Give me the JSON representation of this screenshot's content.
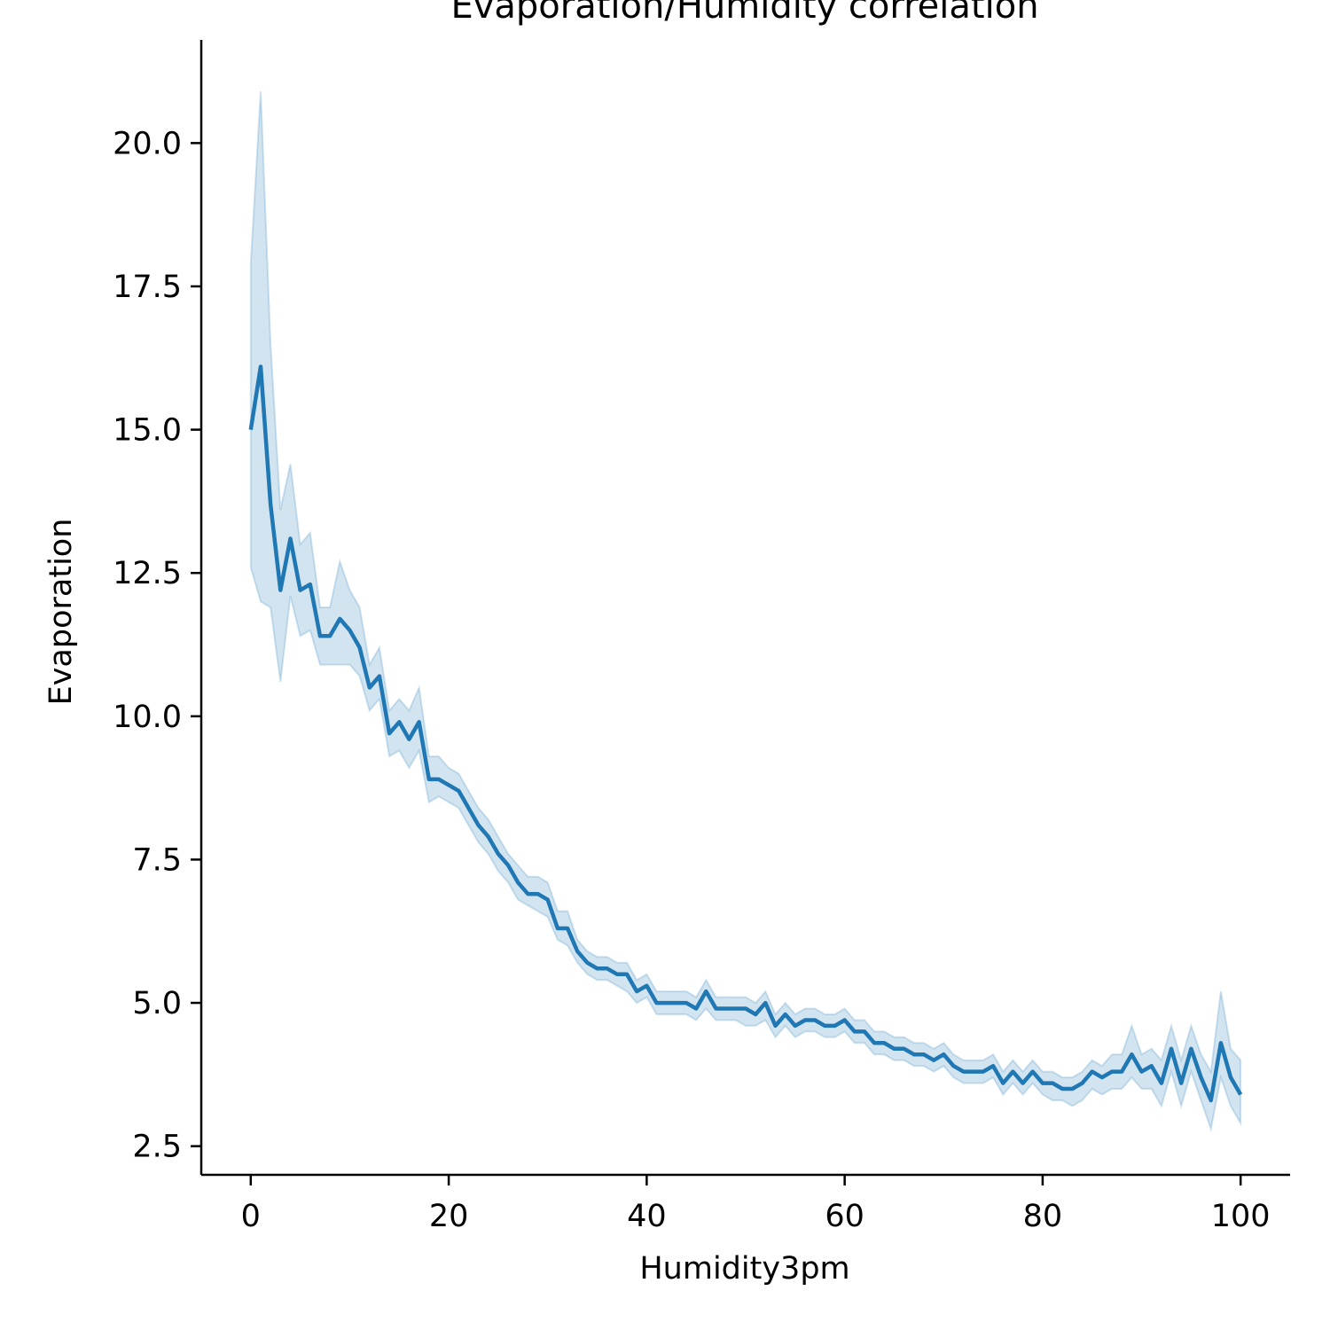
{
  "chart_data": {
    "type": "line",
    "title": "Evaporation/Humidity correlation",
    "xlabel": "Humidity3pm",
    "ylabel": "Evaporation",
    "xlim": [
      -5,
      105
    ],
    "ylim": [
      2.0,
      21.8
    ],
    "xticks": [
      0,
      20,
      40,
      60,
      80,
      100
    ],
    "xtick_labels": [
      "0",
      "20",
      "40",
      "60",
      "80",
      "100"
    ],
    "yticks": [
      2.5,
      5.0,
      7.5,
      10.0,
      12.5,
      15.0,
      17.5,
      20.0
    ],
    "ytick_labels": [
      "2.5",
      "5.0",
      "7.5",
      "10.0",
      "12.5",
      "15.0",
      "17.5",
      "20.0"
    ],
    "grid": false,
    "line_color": "#1f77b4",
    "band_color": "#1f77b4",
    "series": [
      {
        "x": [
          0,
          1,
          2,
          3,
          4,
          5,
          6,
          7,
          8,
          9,
          10,
          11,
          12,
          13,
          14,
          15,
          16,
          17,
          18,
          19,
          20,
          21,
          22,
          23,
          24,
          25,
          26,
          27,
          28,
          29,
          30,
          31,
          32,
          33,
          34,
          35,
          36,
          37,
          38,
          39,
          40,
          41,
          42,
          43,
          44,
          45,
          46,
          47,
          48,
          49,
          50,
          51,
          52,
          53,
          54,
          55,
          56,
          57,
          58,
          59,
          60,
          61,
          62,
          63,
          64,
          65,
          66,
          67,
          68,
          69,
          70,
          71,
          72,
          73,
          74,
          75,
          76,
          77,
          78,
          79,
          80,
          81,
          82,
          83,
          84,
          85,
          86,
          87,
          88,
          89,
          90,
          91,
          92,
          93,
          94,
          95,
          96,
          97,
          98,
          99,
          100
        ],
        "y": [
          15.0,
          16.1,
          13.7,
          12.2,
          13.1,
          12.2,
          12.3,
          11.4,
          11.4,
          11.7,
          11.5,
          11.2,
          10.5,
          10.7,
          9.7,
          9.9,
          9.6,
          9.9,
          8.9,
          8.9,
          8.8,
          8.7,
          8.4,
          8.1,
          7.9,
          7.6,
          7.4,
          7.1,
          6.9,
          6.9,
          6.8,
          6.3,
          6.3,
          5.9,
          5.7,
          5.6,
          5.6,
          5.5,
          5.5,
          5.2,
          5.3,
          5.0,
          5.0,
          5.0,
          5.0,
          4.9,
          5.2,
          4.9,
          4.9,
          4.9,
          4.9,
          4.8,
          5.0,
          4.6,
          4.8,
          4.6,
          4.7,
          4.7,
          4.6,
          4.6,
          4.7,
          4.5,
          4.5,
          4.3,
          4.3,
          4.2,
          4.2,
          4.1,
          4.1,
          4.0,
          4.1,
          3.9,
          3.8,
          3.8,
          3.8,
          3.9,
          3.6,
          3.8,
          3.6,
          3.8,
          3.6,
          3.6,
          3.5,
          3.5,
          3.6,
          3.8,
          3.7,
          3.8,
          3.8,
          4.1,
          3.8,
          3.9,
          3.6,
          4.2,
          3.6,
          4.2,
          3.7,
          3.3,
          4.3,
          3.7,
          3.4
        ],
        "y_low": [
          12.6,
          12.0,
          11.9,
          10.6,
          12.1,
          11.4,
          11.5,
          10.9,
          10.9,
          10.9,
          10.9,
          10.7,
          10.1,
          10.3,
          9.3,
          9.4,
          9.1,
          9.4,
          8.5,
          8.6,
          8.5,
          8.4,
          8.1,
          7.8,
          7.6,
          7.3,
          7.1,
          6.8,
          6.7,
          6.6,
          6.5,
          6.1,
          6.0,
          5.7,
          5.5,
          5.4,
          5.4,
          5.3,
          5.2,
          5.0,
          5.1,
          4.8,
          4.8,
          4.8,
          4.8,
          4.7,
          4.9,
          4.7,
          4.7,
          4.7,
          4.6,
          4.6,
          4.7,
          4.4,
          4.6,
          4.4,
          4.5,
          4.5,
          4.4,
          4.4,
          4.5,
          4.3,
          4.3,
          4.1,
          4.1,
          4.0,
          4.0,
          3.9,
          3.9,
          3.8,
          3.9,
          3.7,
          3.6,
          3.6,
          3.6,
          3.7,
          3.4,
          3.6,
          3.4,
          3.6,
          3.4,
          3.3,
          3.3,
          3.2,
          3.3,
          3.5,
          3.4,
          3.5,
          3.5,
          3.7,
          3.5,
          3.5,
          3.2,
          3.8,
          3.2,
          3.8,
          3.3,
          2.8,
          3.7,
          3.2,
          2.9
        ],
        "y_high": [
          17.9,
          20.9,
          16.5,
          13.6,
          14.4,
          13.0,
          13.2,
          11.9,
          11.9,
          12.7,
          12.2,
          11.9,
          10.9,
          11.2,
          10.1,
          10.3,
          10.1,
          10.5,
          9.3,
          9.3,
          9.1,
          9.0,
          8.7,
          8.4,
          8.2,
          7.9,
          7.6,
          7.4,
          7.2,
          7.2,
          7.1,
          6.6,
          6.6,
          6.1,
          5.9,
          5.8,
          5.8,
          5.7,
          5.7,
          5.4,
          5.5,
          5.2,
          5.2,
          5.2,
          5.2,
          5.1,
          5.4,
          5.1,
          5.1,
          5.1,
          5.1,
          5.0,
          5.2,
          4.8,
          5.0,
          4.8,
          4.9,
          4.9,
          4.8,
          4.8,
          4.9,
          4.7,
          4.7,
          4.5,
          4.5,
          4.4,
          4.4,
          4.3,
          4.3,
          4.2,
          4.3,
          4.1,
          4.0,
          4.0,
          4.0,
          4.1,
          3.8,
          4.0,
          3.8,
          4.0,
          3.8,
          3.8,
          3.7,
          3.7,
          3.8,
          4.0,
          3.9,
          4.1,
          4.1,
          4.6,
          4.1,
          4.2,
          4.0,
          4.6,
          4.0,
          4.6,
          4.1,
          3.8,
          5.2,
          4.2,
          4.0
        ]
      }
    ]
  }
}
